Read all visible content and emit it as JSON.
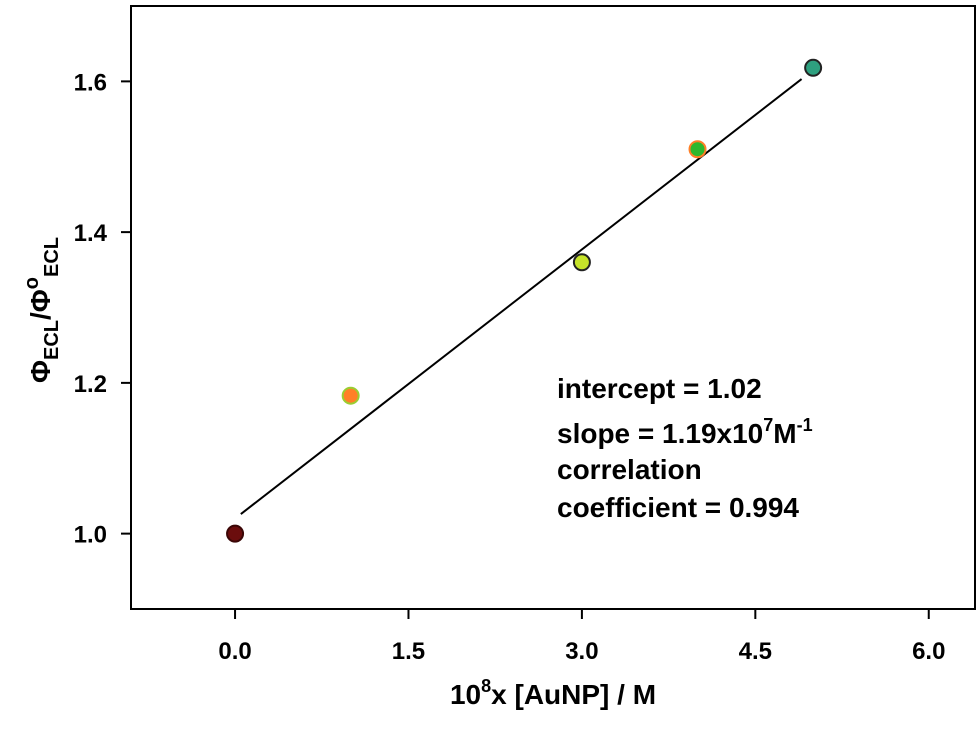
{
  "chart_data": {
    "type": "scatter",
    "xlabel_parts": [
      "10",
      "8",
      "x [AuNP] / M"
    ],
    "ylabel_parts": [
      "Φ",
      "ECL",
      "/Φ",
      "o",
      "ECL"
    ],
    "xlim": [
      -0.9,
      6.4
    ],
    "ylim": [
      0.9,
      1.7
    ],
    "xticks": [
      0.0,
      1.5,
      3.0,
      4.5,
      6.0
    ],
    "xtick_labels": [
      "0.0",
      "1.5",
      "3.0",
      "4.5",
      "6.0"
    ],
    "yticks": [
      1.0,
      1.2,
      1.4,
      1.6
    ],
    "ytick_labels": [
      "1.0",
      "1.2",
      "1.4",
      "1.6"
    ],
    "grid": false,
    "points": [
      {
        "x": 0,
        "y": 1.0,
        "fill": "#6b0d0d",
        "stroke": "#3a0606"
      },
      {
        "x": 1,
        "y": 1.183,
        "fill": "#ff7f27",
        "stroke": "#9acd32"
      },
      {
        "x": 3,
        "y": 1.36,
        "fill": "#c6e32a",
        "stroke": "#222222"
      },
      {
        "x": 4,
        "y": 1.51,
        "fill": "#2db82d",
        "stroke": "#ff7f27"
      },
      {
        "x": 5,
        "y": 1.618,
        "fill": "#2ea07f",
        "stroke": "#222222"
      }
    ],
    "fit": {
      "x_start": 0.05,
      "x_end": 4.9,
      "intercept": 1.02,
      "slope": 0.119
    },
    "annotation": {
      "intercept": "intercept = 1.02",
      "slope_prefix": "slope = 1.19x10",
      "slope_exp": "7",
      "slope_unit": "M",
      "slope_unit_exp": "-1",
      "correlation": "correlation",
      "coefficient": "coefficient = 0.994"
    }
  }
}
